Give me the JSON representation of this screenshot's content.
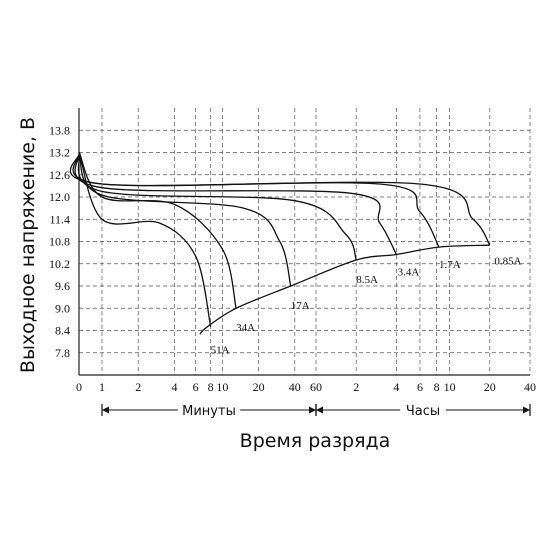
{
  "chart_data": {
    "type": "line",
    "title": "",
    "ylabel": "Выходное напряжение, В",
    "xlabel": "Время разряда",
    "y_ticks": [
      "13.8",
      "13.2",
      "12.6",
      "12.0",
      "11.4",
      "10.8",
      "10.2",
      "9.6",
      "9.0",
      "8.4",
      "7.8"
    ],
    "ylim": [
      7.2,
      14.4
    ],
    "x_ticks_minutes": [
      "0",
      "1",
      "2",
      "4",
      "6",
      "8",
      "10",
      "20",
      "40",
      "60"
    ],
    "x_ticks_hours": [
      "2",
      "4",
      "6",
      "8",
      "10",
      "20",
      "40"
    ],
    "x_ranges": [
      {
        "label": "Минуты",
        "from": "1 min",
        "to": "60 min"
      },
      {
        "label": "Часы",
        "from": "1 h",
        "to": "40 h"
      }
    ],
    "grid": true,
    "x_scale": "log",
    "series": [
      {
        "name": "51A",
        "unit": "min",
        "points": [
          [
            0.01,
            13.2
          ],
          [
            1,
            11.4
          ],
          [
            3,
            11.3
          ],
          [
            6,
            10.4
          ],
          [
            8,
            8.5
          ]
        ],
        "label_at": [
          8,
          8.0
        ]
      },
      {
        "name": "34A",
        "unit": "min",
        "points": [
          [
            0.01,
            13.2
          ],
          [
            1,
            12.0
          ],
          [
            4,
            11.8
          ],
          [
            10,
            10.6
          ],
          [
            13,
            9.0
          ]
        ],
        "label_at": [
          13,
          8.6
        ]
      },
      {
        "name": "17A",
        "unit": "min",
        "points": [
          [
            0.01,
            13.2
          ],
          [
            1,
            12.05
          ],
          [
            15,
            11.7
          ],
          [
            30,
            10.8
          ],
          [
            37,
            9.6
          ]
        ],
        "label_at": [
          37,
          9.2
        ]
      },
      {
        "name": "8.5A",
        "unit": "min",
        "points": [
          [
            0.01,
            13.2
          ],
          [
            1,
            12.15
          ],
          [
            40,
            11.9
          ],
          [
            100,
            11.0
          ],
          [
            120,
            10.3
          ]
        ],
        "label_at": [
          120,
          9.9
        ]
      },
      {
        "name": "3.4A",
        "unit": "min",
        "points": [
          [
            0.01,
            13.2
          ],
          [
            1,
            12.25
          ],
          [
            110,
            12.1
          ],
          [
            180,
            11.3
          ],
          [
            240,
            10.45
          ]
        ],
        "label_at": [
          245,
          10.1
        ]
      },
      {
        "name": "1.7A",
        "unit": "min",
        "points": [
          [
            0.01,
            13.2
          ],
          [
            1,
            12.35
          ],
          [
            180,
            12.35
          ],
          [
            360,
            11.6
          ],
          [
            500,
            10.65
          ]
        ],
        "label_at": [
          500,
          10.3
        ]
      },
      {
        "name": "0.85A",
        "unit": "min",
        "points": [
          [
            0.01,
            13.2
          ],
          [
            1,
            12.35
          ],
          [
            360,
            12.35
          ],
          [
            900,
            11.4
          ],
          [
            1200,
            10.7
          ]
        ],
        "label_at": [
          1300,
          10.4
        ]
      }
    ],
    "end_voltage_line": [
      [
        6.5,
        8.3
      ],
      [
        7.5,
        8.5
      ],
      [
        13,
        9.0
      ],
      [
        37,
        9.6
      ],
      [
        120,
        10.3
      ],
      [
        240,
        10.45
      ],
      [
        500,
        10.65
      ],
      [
        1200,
        10.7
      ]
    ]
  }
}
